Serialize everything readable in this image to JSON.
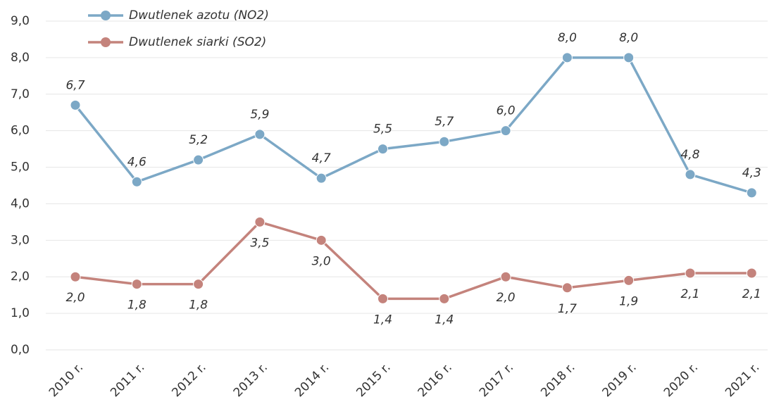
{
  "chart_data": {
    "type": "line",
    "categories": [
      "2010 r.",
      "2011 r.",
      "2012 r.",
      "2013 r.",
      "2014 r.",
      "2015 r.",
      "2016 r.",
      "2017 r.",
      "2018 r.",
      "2019 r.",
      "2020 r.",
      "2021 r."
    ],
    "series": [
      {
        "name": "Dwutlenek azotu (NO2)",
        "color": "#7ca8c6",
        "values": [
          6.7,
          4.6,
          5.2,
          5.9,
          4.7,
          5.5,
          5.7,
          6.0,
          8.0,
          8.0,
          4.8,
          4.3
        ],
        "value_labels": [
          "6,7",
          "4,6",
          "5,2",
          "5,9",
          "4,7",
          "5,5",
          "5,7",
          "6,0",
          "8,0",
          "8,0",
          "4,8",
          "4,3"
        ]
      },
      {
        "name": "Dwutlenek siarki (SO2)",
        "color": "#c4837c",
        "values": [
          2.0,
          1.8,
          1.8,
          3.5,
          3.0,
          1.4,
          1.4,
          2.0,
          1.7,
          1.9,
          2.1,
          2.1
        ],
        "value_labels": [
          "2,0",
          "1,8",
          "1,8",
          "3,5",
          "3,0",
          "1,4",
          "1,4",
          "2,0",
          "1,7",
          "1,9",
          "2,1",
          "2,1"
        ]
      }
    ],
    "ylim": [
      0,
      9
    ],
    "yticks": [
      {
        "value": 0,
        "label": "0,0"
      },
      {
        "value": 1,
        "label": "1,0"
      },
      {
        "value": 2,
        "label": "2,0"
      },
      {
        "value": 3,
        "label": "3,0"
      },
      {
        "value": 4,
        "label": "4,0"
      },
      {
        "value": 5,
        "label": "5,0"
      },
      {
        "value": 6,
        "label": "6,0"
      },
      {
        "value": 7,
        "label": "7,0"
      },
      {
        "value": 8,
        "label": "8,0"
      },
      {
        "value": 9,
        "label": "9,0"
      }
    ],
    "grid": true,
    "legend": "top-left"
  }
}
